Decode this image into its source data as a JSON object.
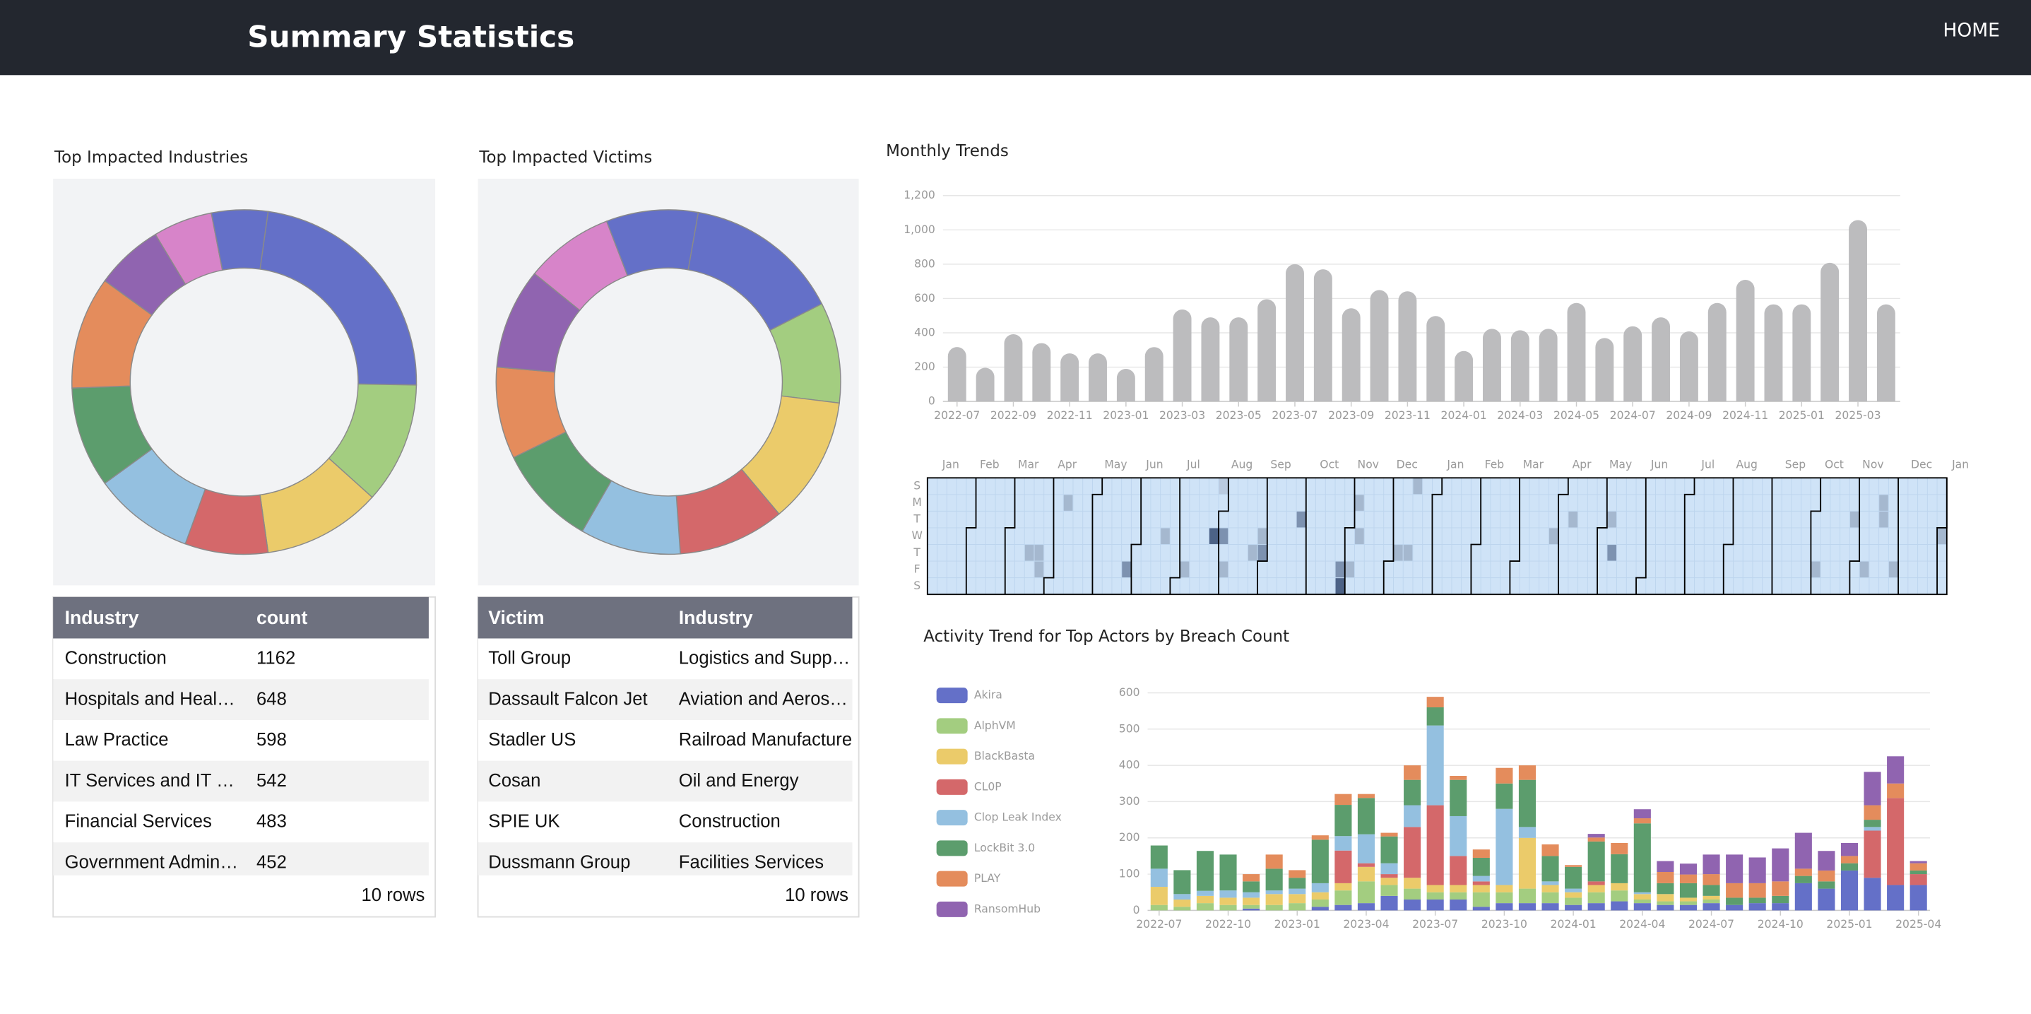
{
  "header": {
    "title": "Summary Statistics",
    "nav": "HOME"
  },
  "chart_data": [
    {
      "type": "pie",
      "donut": true,
      "title": "Top Impacted Industries",
      "values": [
        83,
        41,
        40,
        28,
        34,
        34,
        38,
        23,
        20,
        19
      ],
      "colors": [
        "#6470c8",
        "#a3cd80",
        "#ebcb6a",
        "#d4686a",
        "#94c0e0",
        "#5c9d6d",
        "#e48c5c",
        "#9064b0",
        "#d784c9",
        "#6470c8"
      ]
    },
    {
      "type": "pie",
      "donut": true,
      "title": "Top Impacted Victims",
      "values": [
        53,
        34,
        43,
        36,
        34,
        34,
        31,
        34,
        30,
        31
      ],
      "colors": [
        "#6470c8",
        "#a3cd80",
        "#ebcb6a",
        "#d4686a",
        "#94c0e0",
        "#5c9d6d",
        "#e48c5c",
        "#9064b0",
        "#d784c9",
        "#6470c8"
      ]
    },
    {
      "type": "bar",
      "title": "Monthly Trends",
      "categories": [
        "2022-07",
        null,
        "2022-09",
        null,
        "2022-11",
        null,
        "2023-01",
        null,
        "2023-03",
        null,
        "2023-05",
        null,
        "2023-07",
        null,
        "2023-09",
        null,
        "2023-11",
        null,
        "2024-01",
        null,
        "2024-03",
        null,
        "2024-05",
        null,
        "2024-07",
        null,
        "2024-09",
        null,
        "2024-11",
        null,
        "2025-01",
        null,
        "2025-03",
        null
      ],
      "values": [
        317,
        196,
        392,
        340,
        280,
        280,
        190,
        317,
        536,
        490,
        490,
        596,
        800,
        770,
        543,
        649,
        642,
        498,
        294,
        423,
        415,
        423,
        574,
        370,
        438,
        490,
        408,
        574,
        709,
        566,
        566,
        808,
        1057,
        566
      ],
      "color": "#bcbcbe",
      "ylim": [
        0,
        1200
      ],
      "yticks": [
        0,
        200,
        400,
        600,
        800,
        {
          "value": 1000,
          "label": "1,000"
        },
        {
          "value": 1200,
          "label": "1,200"
        }
      ],
      "grid": true
    },
    {
      "type": "heatmap",
      "x_categories": [
        "Jan",
        "Feb",
        "Mar",
        "Apr",
        "May",
        "Jun",
        "Jul",
        "Aug",
        "Sep",
        "Oct",
        "Nov",
        "Dec",
        "Jan",
        "Feb",
        "Mar",
        "Apr",
        "May",
        "Jun",
        "Jul",
        "Aug",
        "Sep",
        "Oct",
        "Nov",
        "Dec",
        "Jan"
      ],
      "y_categories": [
        "S",
        "M",
        "T",
        "W",
        "T",
        "F",
        "S"
      ],
      "x": [
        14,
        10,
        11,
        11,
        20,
        24,
        26,
        29,
        30,
        30,
        30,
        33,
        34,
        34,
        38,
        42,
        42,
        43,
        44,
        44,
        48,
        49,
        50,
        64,
        66,
        70,
        70,
        91,
        95,
        96,
        98,
        98,
        99,
        104
      ],
      "y": [
        1,
        4,
        4,
        5,
        5,
        3,
        5,
        3,
        3,
        0,
        5,
        4,
        4,
        3,
        2,
        5,
        6,
        5,
        1,
        3,
        4,
        4,
        0,
        3,
        2,
        2,
        4,
        5,
        2,
        5,
        1,
        2,
        5,
        3
      ],
      "values": [
        2,
        2,
        2,
        2,
        3,
        2,
        2,
        4,
        3,
        1,
        2,
        2,
        3,
        2,
        3,
        3,
        4,
        2,
        2,
        2,
        2,
        2,
        2,
        2,
        2,
        2,
        3,
        2,
        2,
        2,
        2,
        2,
        2,
        2
      ],
      "colorscale": [
        "#cfe3f7",
        "#b9cadf",
        "#a5b8cf",
        "#7d92b0",
        "#4c6286"
      ]
    },
    {
      "type": "bar",
      "stacked": true,
      "title": "Activity Trend for Top Actors by Breach Count",
      "categories": [
        "2022-07",
        null,
        null,
        "2022-10",
        null,
        null,
        "2023-01",
        null,
        null,
        "2023-04",
        null,
        null,
        "2023-07",
        null,
        null,
        "2023-10",
        null,
        null,
        "2024-01",
        null,
        null,
        "2024-04",
        null,
        null,
        "2024-07",
        null,
        null,
        "2024-10",
        null,
        null,
        "2025-01",
        null,
        null,
        "2025-04"
      ],
      "series": [
        {
          "name": "Akira",
          "color": "#6470c8",
          "values": [
            0,
            0,
            0,
            0,
            5,
            0,
            0,
            10,
            15,
            20,
            40,
            30,
            30,
            30,
            10,
            20,
            20,
            20,
            15,
            20,
            25,
            20,
            15,
            15,
            20,
            15,
            20,
            20,
            75,
            60,
            110,
            90,
            70,
            70
          ]
        },
        {
          "name": "AlphVM",
          "color": "#a3cd80",
          "values": [
            15,
            10,
            20,
            15,
            10,
            15,
            20,
            20,
            40,
            60,
            30,
            30,
            20,
            20,
            40,
            30,
            40,
            30,
            20,
            30,
            30,
            10,
            10,
            10,
            10,
            0,
            0,
            0,
            0,
            0,
            0,
            0,
            0,
            0
          ]
        },
        {
          "name": "BlackBasta",
          "color": "#ebcb6a",
          "values": [
            50,
            20,
            20,
            20,
            20,
            30,
            25,
            20,
            20,
            40,
            20,
            30,
            20,
            20,
            20,
            20,
            140,
            20,
            15,
            20,
            20,
            15,
            20,
            10,
            10,
            0,
            0,
            0,
            0,
            0,
            0,
            0,
            0,
            0
          ]
        },
        {
          "name": "CL0P",
          "color": "#d4686a",
          "values": [
            0,
            0,
            0,
            0,
            0,
            0,
            0,
            0,
            90,
            10,
            10,
            140,
            220,
            80,
            10,
            0,
            0,
            0,
            0,
            10,
            0,
            0,
            0,
            0,
            0,
            0,
            0,
            0,
            0,
            0,
            0,
            130,
            240,
            30
          ]
        },
        {
          "name": "Clop Leak Index",
          "color": "#94c0e0",
          "values": [
            50,
            15,
            14,
            20,
            15,
            10,
            15,
            25,
            40,
            80,
            30,
            60,
            220,
            110,
            15,
            210,
            30,
            10,
            10,
            0,
            0,
            5,
            0,
            0,
            0,
            0,
            0,
            0,
            0,
            0,
            0,
            10,
            0,
            0
          ]
        },
        {
          "name": "LockBit 3.0",
          "color": "#5c9d6d",
          "values": [
            64,
            66,
            110,
            99,
            30,
            60,
            30,
            120,
            86,
            100,
            74,
            70,
            50,
            100,
            50,
            70,
            130,
            70,
            60,
            110,
            80,
            190,
            30,
            40,
            30,
            20,
            15,
            20,
            20,
            20,
            20,
            20,
            0,
            10
          ]
        },
        {
          "name": "PLAY",
          "color": "#e48c5c",
          "values": [
            0,
            0,
            0,
            0,
            20,
            39,
            21,
            12,
            30,
            11,
            10,
            40,
            29,
            11,
            23,
            43,
            40,
            32,
            5,
            11,
            31,
            14,
            31,
            24,
            30,
            40,
            40,
            40,
            20,
            30,
            20,
            40,
            40,
            20
          ]
        },
        {
          "name": "RansomHub",
          "color": "#9064b0",
          "values": [
            0,
            0,
            0,
            0,
            0,
            0,
            0,
            0,
            0,
            0,
            0,
            0,
            0,
            0,
            0,
            0,
            0,
            0,
            0,
            10,
            0,
            25,
            30,
            30,
            54,
            79,
            71,
            91,
            99,
            54,
            36,
            92,
            75,
            6
          ]
        }
      ],
      "ylim": [
        0,
        600
      ],
      "yticks": [
        0,
        100,
        200,
        300,
        400,
        500,
        600
      ],
      "grid": true,
      "legend": "left"
    }
  ],
  "tables": [
    {
      "columns": [
        "Industry",
        "count"
      ],
      "rows": [
        [
          "Construction",
          1162
        ],
        [
          "Hospitals and Heal…",
          648
        ],
        [
          "Law Practice",
          598
        ],
        [
          "IT Services and IT …",
          542
        ],
        [
          "Financial Services",
          483
        ],
        [
          "Government Admin…",
          452
        ]
      ],
      "footer": "10 rows"
    },
    {
      "columns": [
        "Victim",
        "Industry"
      ],
      "rows": [
        [
          "Toll Group",
          "Logistics and Supp…"
        ],
        [
          "Dassault Falcon Jet",
          "Aviation and Aeros…"
        ],
        [
          "Stadler US",
          "Railroad Manufacture"
        ],
        [
          "Cosan",
          "Oil and Energy"
        ],
        [
          "SPIE UK",
          "Construction"
        ],
        [
          "Dussmann Group",
          "Facilities Services"
        ]
      ],
      "footer": "10 rows"
    }
  ]
}
